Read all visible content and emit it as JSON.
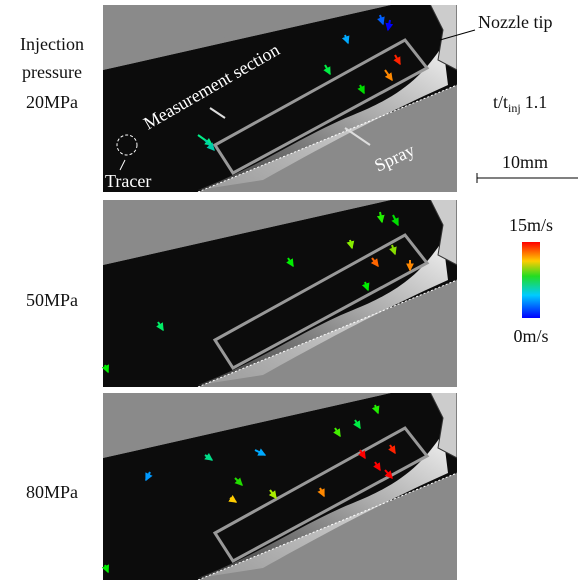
{
  "left_labels": {
    "title": [
      "Injection",
      "pressure"
    ],
    "rows": [
      "20MPa",
      "50MPa",
      "80MPa"
    ]
  },
  "annotations": {
    "nozzle": "Nozzle tip",
    "section": "Measurement section",
    "spray": "Spray",
    "tracer": "Tracer"
  },
  "time": {
    "base": "t/t",
    "sub": "inj",
    "value": "1.1"
  },
  "scale_bar": "10mm",
  "colorbar": {
    "max": "15m/s",
    "min": "0m/s"
  }
}
